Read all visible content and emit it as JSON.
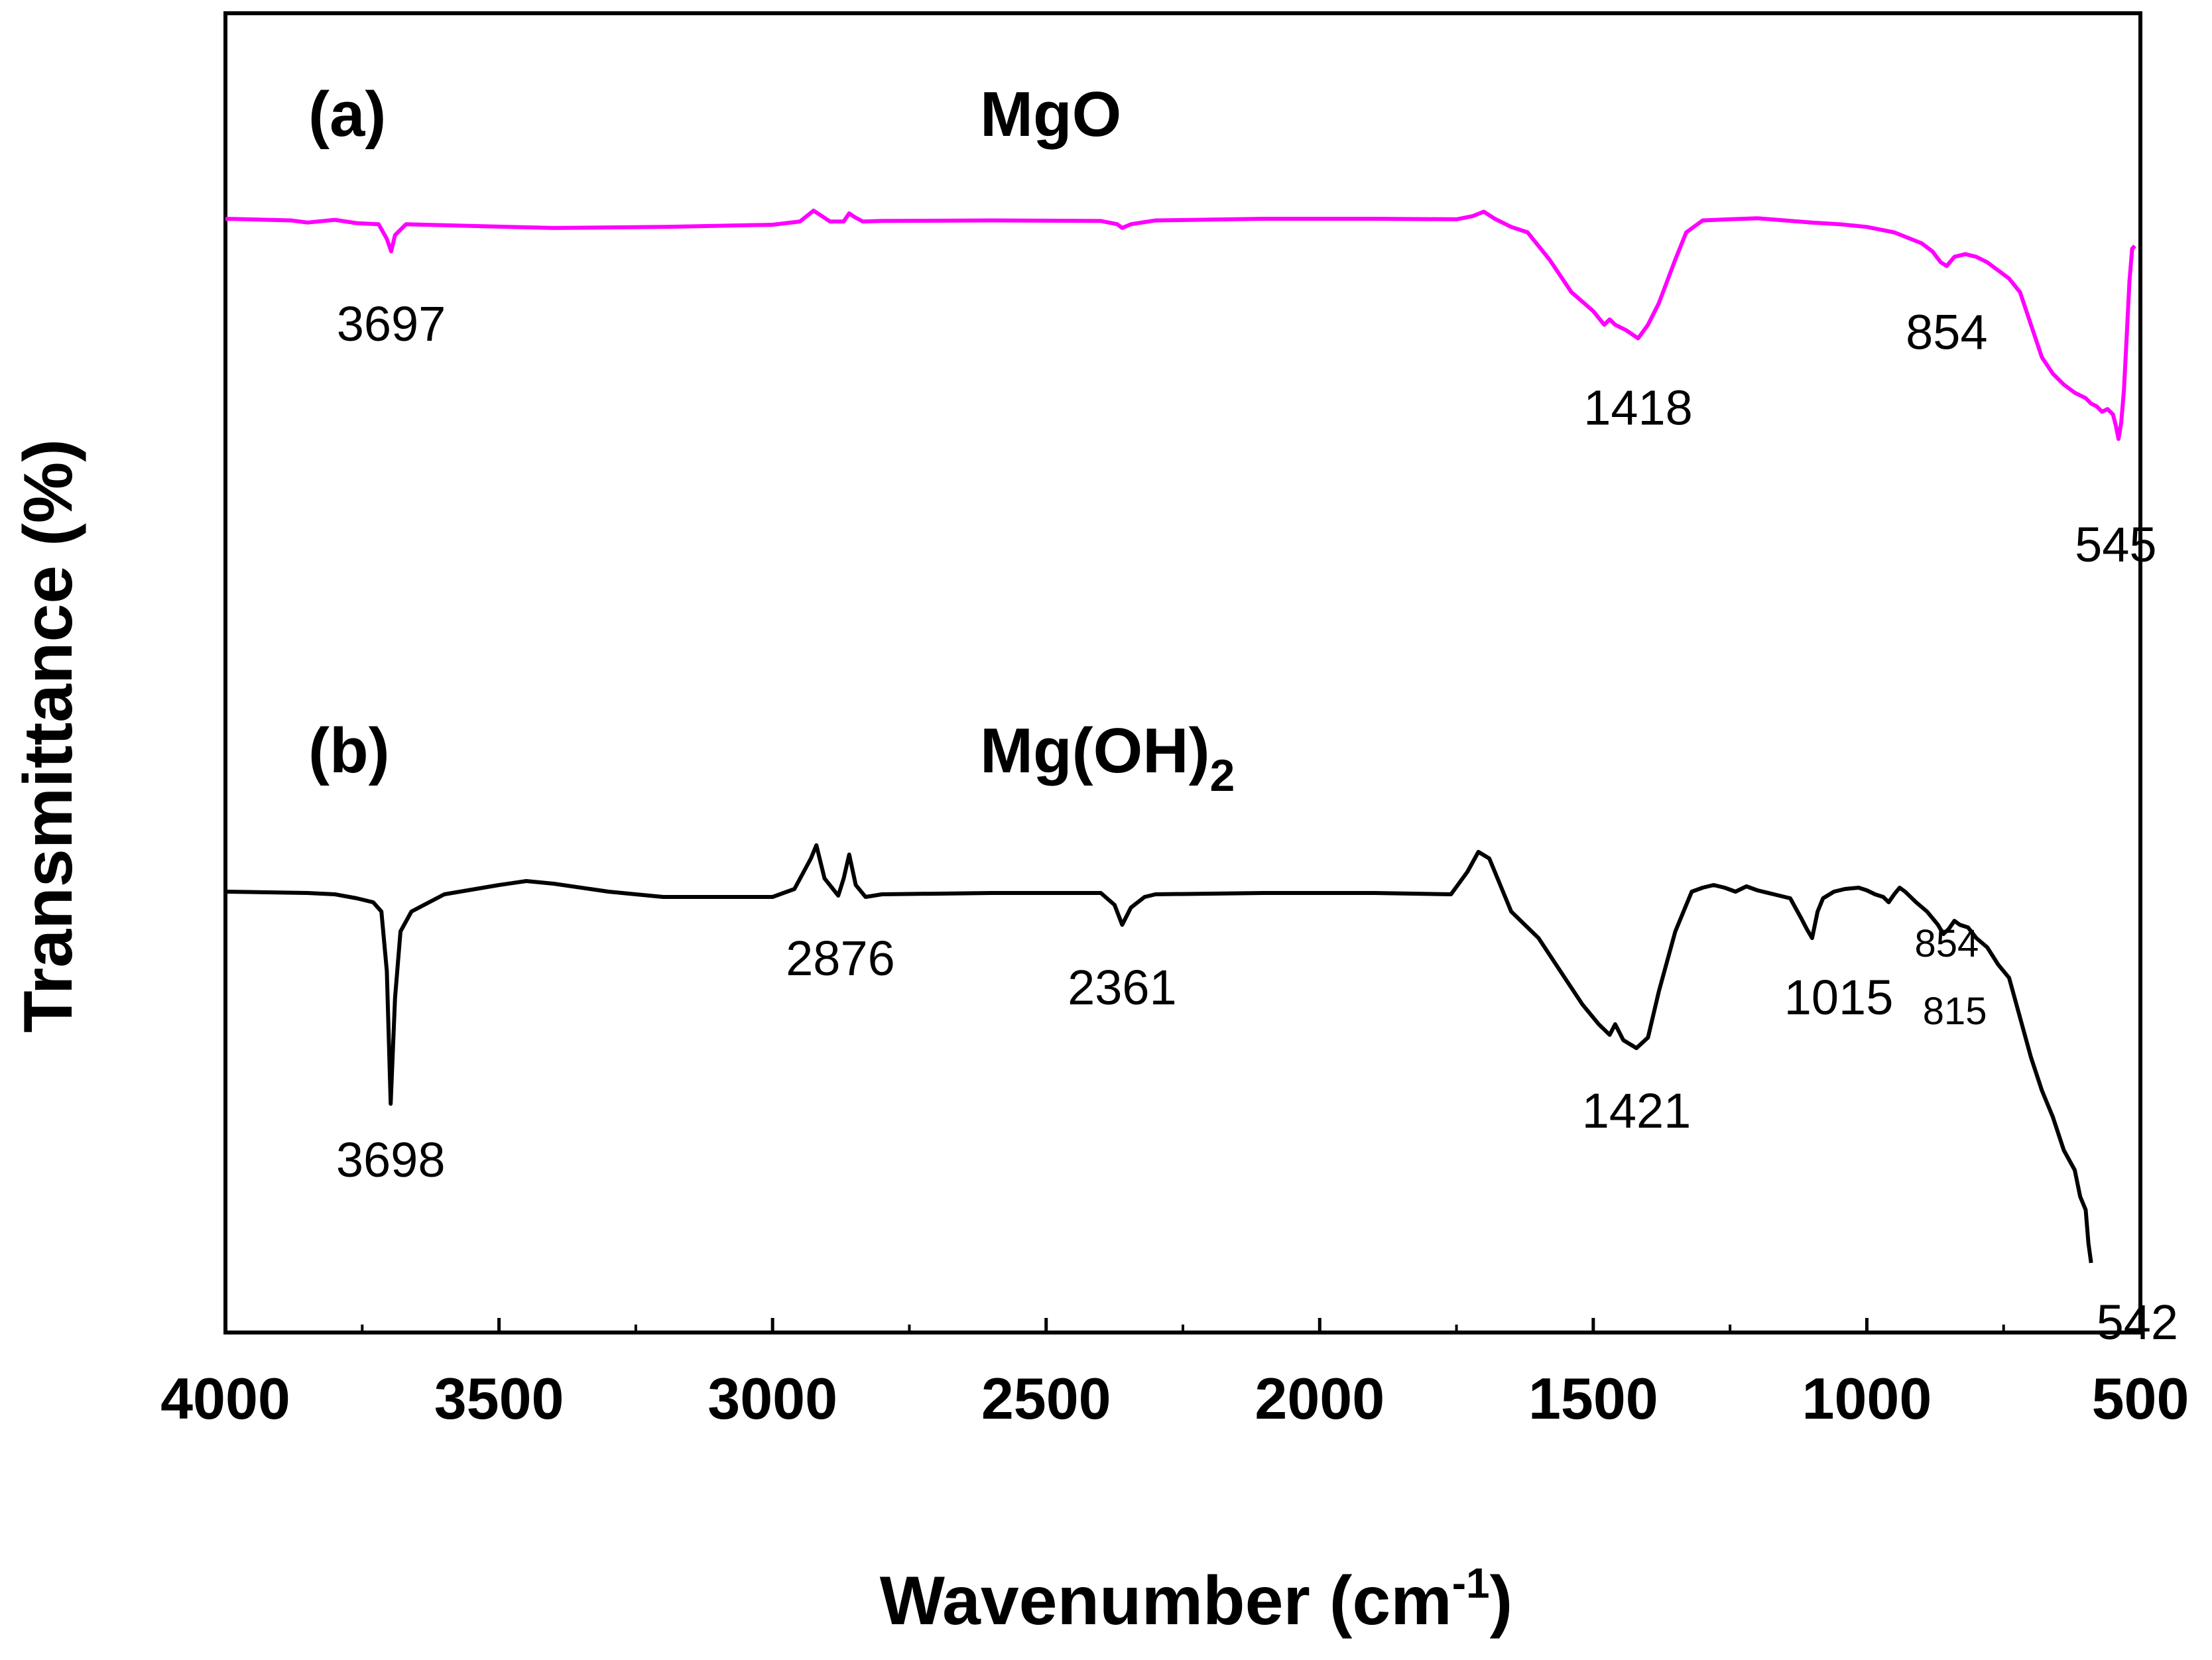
{
  "chart_data": {
    "type": "line",
    "title": "",
    "xlabel": "Wavenumber (cm",
    "xlabel_sup": "-1",
    "xlabel_end": ")",
    "ylabel": "Transmittance (%)",
    "xlim": [
      4000,
      500
    ],
    "ylim": [
      0,
      100
    ],
    "x_reversed": true,
    "y_ticks_shown": false,
    "x_ticks": [
      "4000",
      "3500",
      "3000",
      "2500",
      "2000",
      "1500",
      "1000",
      "500"
    ],
    "series": [
      {
        "name": "MgO",
        "panel": "(a)",
        "label": "MgO",
        "color": "#ff00ff",
        "x": [
          4000,
          3880,
          3850,
          3800,
          3760,
          3720,
          3705,
          3697,
          3690,
          3670,
          3600,
          3400,
          3200,
          3000,
          2950,
          2925,
          2910,
          2895,
          2870,
          2860,
          2850,
          2835,
          2800,
          2600,
          2400,
          2370,
          2361,
          2345,
          2300,
          2100,
          1900,
          1750,
          1720,
          1700,
          1680,
          1650,
          1620,
          1580,
          1540,
          1500,
          1480,
          1470,
          1460,
          1440,
          1418,
          1400,
          1380,
          1350,
          1330,
          1300,
          1250,
          1200,
          1150,
          1100,
          1050,
          1000,
          950,
          900,
          880,
          865,
          854,
          840,
          820,
          800,
          780,
          760,
          740,
          720,
          700,
          680,
          660,
          640,
          620,
          600,
          590,
          580,
          570,
          560,
          550,
          545,
          540,
          535,
          530,
          525,
          520,
          515,
          510
        ],
        "y": [
          93.5,
          93.2,
          92.8,
          93.3,
          92.7,
          92.5,
          89.8,
          87.5,
          90.5,
          92.5,
          92.3,
          91.8,
          92.0,
          92.4,
          93.0,
          95.0,
          94.0,
          93.0,
          93.0,
          94.5,
          93.8,
          93.0,
          93.1,
          93.2,
          93.1,
          92.5,
          91.8,
          92.5,
          93.2,
          93.5,
          93.5,
          93.4,
          94.0,
          94.8,
          93.5,
          92.0,
          91.0,
          86.0,
          80.0,
          76.5,
          74.0,
          75.0,
          74.0,
          73.0,
          71.5,
          74.0,
          78.0,
          86.0,
          91.0,
          93.2,
          93.4,
          93.6,
          93.2,
          92.8,
          92.5,
          92.0,
          91.0,
          89.0,
          87.5,
          85.5,
          84.8,
          86.5,
          87.0,
          86.5,
          85.5,
          84.0,
          82.5,
          80.0,
          74.0,
          68.0,
          65.0,
          63.0,
          61.5,
          60.5,
          59.5,
          59.0,
          58.0,
          58.5,
          57.5,
          55.5,
          53.0,
          56.0,
          62.0,
          72.0,
          82.0,
          88.0,
          88.5
        ]
      },
      {
        "name": "Mg(OH)2",
        "panel": "(b)",
        "label": "Mg(OH)",
        "label_sub": "2",
        "color": "#000000",
        "x": [
          4000,
          3850,
          3800,
          3760,
          3730,
          3715,
          3705,
          3698,
          3690,
          3680,
          3660,
          3600,
          3500,
          3450,
          3400,
          3300,
          3200,
          3000,
          2960,
          2930,
          2920,
          2905,
          2880,
          2870,
          2860,
          2848,
          2830,
          2800,
          2600,
          2400,
          2375,
          2361,
          2345,
          2320,
          2300,
          2100,
          1900,
          1760,
          1730,
          1710,
          1690,
          1670,
          1650,
          1600,
          1560,
          1520,
          1490,
          1470,
          1460,
          1445,
          1421,
          1400,
          1380,
          1350,
          1320,
          1300,
          1280,
          1260,
          1240,
          1220,
          1200,
          1170,
          1140,
          1120,
          1110,
          1100,
          1090,
          1080,
          1060,
          1040,
          1015,
          1000,
          985,
          970,
          960,
          950,
          940,
          930,
          910,
          890,
          870,
          860,
          850,
          840,
          830,
          815,
          800,
          780,
          760,
          740,
          720,
          700,
          680,
          660,
          640,
          620,
          610,
          600,
          595,
          590
        ],
        "y": [
          58.0,
          57.9,
          57.8,
          57.5,
          57.2,
          56.5,
          52.0,
          42.0,
          50.0,
          55.0,
          56.5,
          57.8,
          58.5,
          58.8,
          58.6,
          58.0,
          57.6,
          57.6,
          58.2,
          60.5,
          61.5,
          59.0,
          57.7,
          59.0,
          60.8,
          58.5,
          57.6,
          57.8,
          57.9,
          57.9,
          57.0,
          55.5,
          56.8,
          57.6,
          57.8,
          57.9,
          57.9,
          57.8,
          59.5,
          61.0,
          60.5,
          58.5,
          56.5,
          54.5,
          52.0,
          49.5,
          48.0,
          47.2,
          48.0,
          46.8,
          46.2,
          47.0,
          50.5,
          55.0,
          58.0,
          58.3,
          58.5,
          58.3,
          58.0,
          58.4,
          58.1,
          57.8,
          57.5,
          56.0,
          55.2,
          54.5,
          56.5,
          57.5,
          58.0,
          58.2,
          58.3,
          58.1,
          57.8,
          57.6,
          57.2,
          57.8,
          58.3,
          58.0,
          57.2,
          56.5,
          55.5,
          54.8,
          55.2,
          55.8,
          55.5,
          55.3,
          54.5,
          53.8,
          52.5,
          51.5,
          48.5,
          45.5,
          43.0,
          41.0,
          38.5,
          37.0,
          35.0,
          34.0,
          31.5,
          30.0
        ]
      }
    ],
    "annotations": [
      {
        "series": 0,
        "text": "3697",
        "size": "normal",
        "x": 3697,
        "y": 87.5,
        "side": "below"
      },
      {
        "series": 0,
        "text": "1418",
        "size": "normal",
        "x": 1418,
        "y": 71.5,
        "side": "below"
      },
      {
        "series": 0,
        "text": "854",
        "size": "normal",
        "x": 854,
        "y": 84.8,
        "side": "below"
      },
      {
        "series": 0,
        "text": "545",
        "size": "normal",
        "x": 545,
        "y": 53.0,
        "side": "below"
      },
      {
        "series": 1,
        "text": "3698",
        "size": "normal",
        "x": 3698,
        "y": 42.0,
        "side": "below"
      },
      {
        "series": 1,
        "text": "2876",
        "size": "normal",
        "x": 2876,
        "y": 57.7,
        "side": "below"
      },
      {
        "series": 1,
        "text": "2361",
        "size": "normal",
        "x": 2361,
        "y": 55.5,
        "side": "below"
      },
      {
        "series": 1,
        "text": "1421",
        "size": "normal",
        "x": 1421,
        "y": 46.2,
        "side": "below"
      },
      {
        "series": 1,
        "text": "1015",
        "size": "normal",
        "x": 1015,
        "y": 54.5,
        "side": "below"
      },
      {
        "series": 1,
        "text": "854",
        "size": "small",
        "x": 854,
        "y": 56.6,
        "side": "below"
      },
      {
        "series": 1,
        "text": "815",
        "size": "small",
        "x": 815,
        "y": 53.5,
        "side": "below"
      },
      {
        "series": 1,
        "text": "542",
        "size": "normal",
        "x": 542,
        "y": 30.0,
        "side": "below"
      }
    ]
  }
}
